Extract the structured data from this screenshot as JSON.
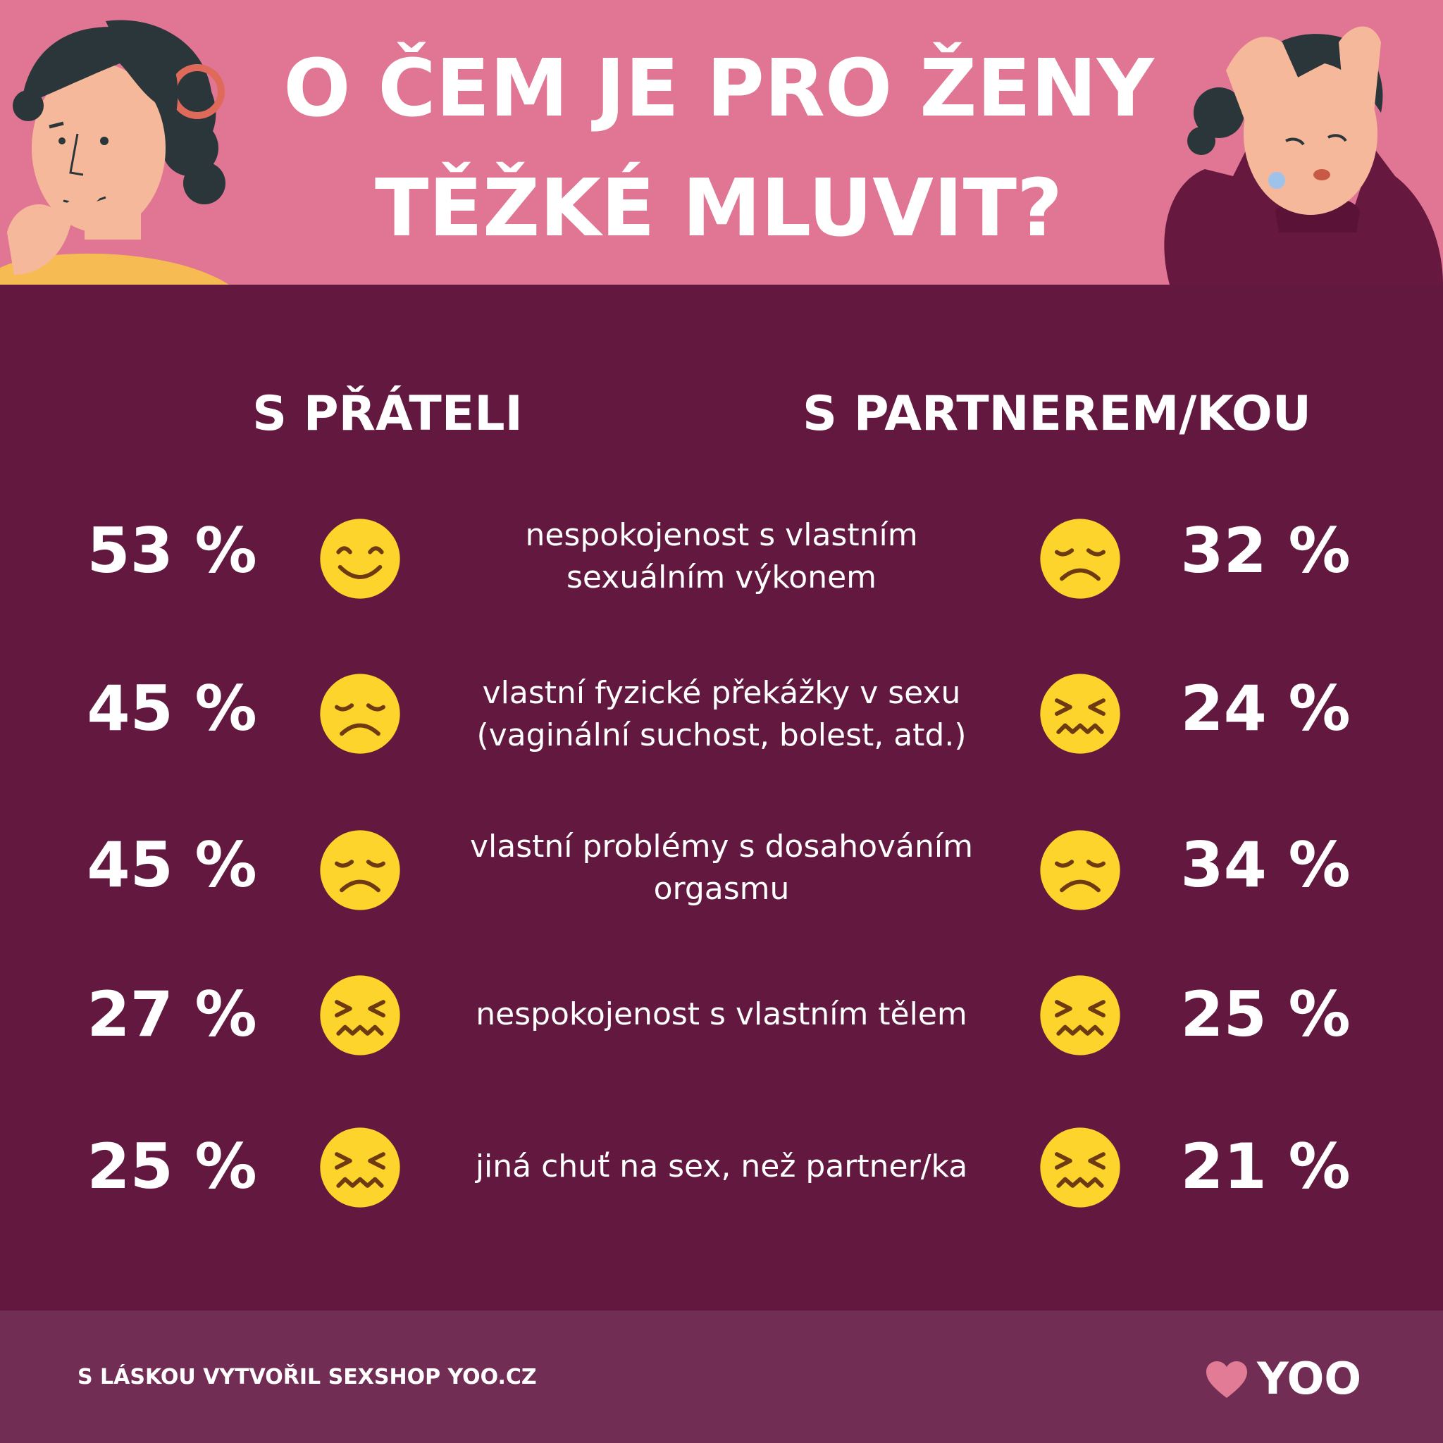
{
  "colors": {
    "header_bg": "#e07693",
    "main_bg": "#63183f",
    "footer_bg": "#712d54",
    "emoji_fill": "#fcd42b",
    "emoji_feature": "#6e3a12",
    "heart": "#e27b95"
  },
  "title": {
    "line1": "O ČEM JE PRO ŽENY",
    "line2": "TĚŽKÉ MLUVIT?"
  },
  "columns": {
    "left": "S PŘÁTELI",
    "right": "S PARTNEREM/KOU"
  },
  "rows": [
    {
      "left_pct": "53 %",
      "left_emoji": "smiling-face-icon",
      "label_line1": "nespokojenost s vlastním",
      "label_line2": "sexuálním výkonem",
      "right_emoji": "disappointed-face-icon",
      "right_pct": "32 %"
    },
    {
      "left_pct": "45 %",
      "left_emoji": "disappointed-face-icon",
      "label_line1": "vlastní fyzické překážky v sexu",
      "label_line2": "(vaginální suchost, bolest, atd.)",
      "right_emoji": "confounded-face-icon",
      "right_pct": "24 %"
    },
    {
      "left_pct": "45 %",
      "left_emoji": "disappointed-face-icon",
      "label_line1": "vlastní problémy s dosahováním",
      "label_line2": "orgasmu",
      "right_emoji": "disappointed-face-icon",
      "right_pct": "34 %"
    },
    {
      "left_pct": "27 %",
      "left_emoji": "confounded-face-icon",
      "label_line1": "nespokojenost s vlastním tělem",
      "label_line2": "",
      "right_emoji": "confounded-face-icon",
      "right_pct": "25 %"
    },
    {
      "left_pct": "25 %",
      "left_emoji": "confounded-face-icon",
      "label_line1": "jiná chuť na sex, než partner/ka",
      "label_line2": "",
      "right_emoji": "confounded-face-icon",
      "right_pct": "21 %"
    }
  ],
  "footer": {
    "credit": "S LÁSKOU VYTVOŘIL SEXSHOP YOO.CZ",
    "logo_text": "YOO"
  }
}
